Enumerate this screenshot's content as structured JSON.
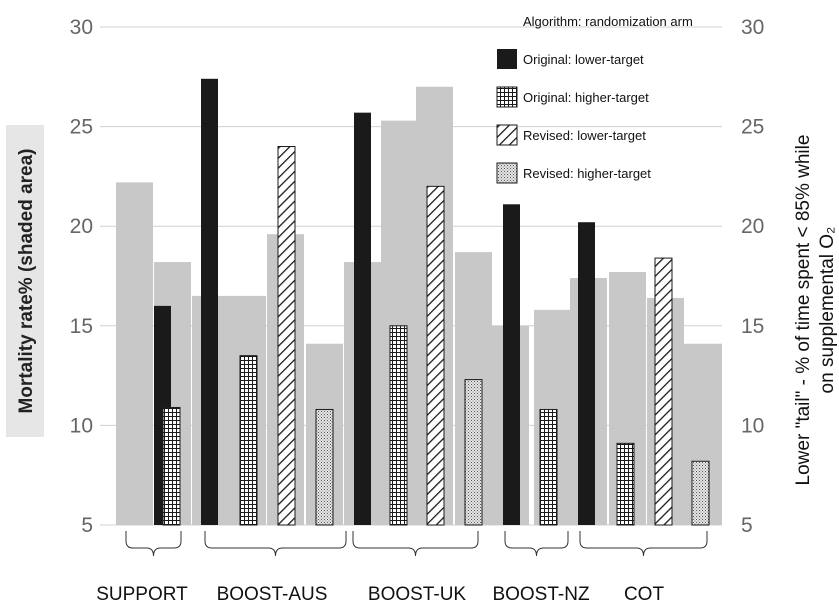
{
  "chart_data": {
    "type": "bar",
    "yleft": {
      "label": "Mortality rate% (shaded area)",
      "ylim": [
        5,
        30
      ],
      "ticks": [
        5,
        10,
        15,
        20,
        25,
        30
      ]
    },
    "yright": {
      "label_line1": "Lower \"tail\" - % of time spent < 85% while",
      "label_line2": "on supplemental O₂",
      "ylim": [
        5,
        30
      ],
      "ticks": [
        5,
        10,
        15,
        20,
        25,
        30
      ]
    },
    "legend_title": "Algorithm: randomization arm",
    "legend": [
      {
        "key": "orig_lower",
        "label": "Original: lower-target"
      },
      {
        "key": "orig_higher",
        "label": "Original: higher-target"
      },
      {
        "key": "rev_lower",
        "label": "Revised: lower-target"
      },
      {
        "key": "rev_higher",
        "label": "Revised: higher-target"
      }
    ],
    "studies": [
      "SUPPORT",
      "BOOST-AUS",
      "BOOST-UK",
      "BOOST-NZ",
      "COT"
    ],
    "mortality": [
      {
        "study": "SUPPORT",
        "arm": "lower",
        "value": 22.2
      },
      {
        "study": "SUPPORT",
        "arm": "higher",
        "value": 18.2
      },
      {
        "study": "BOOST-AUS",
        "arm": "lower",
        "value": 16.5
      },
      {
        "study": "BOOST-AUS",
        "arm": "higher",
        "value": 16.5
      },
      {
        "study": "BOOST-AUS",
        "arm": "lower",
        "value": 19.6
      },
      {
        "study": "BOOST-AUS",
        "arm": "higher",
        "value": 14.1
      },
      {
        "study": "BOOST-UK",
        "arm": "lower",
        "value": 18.2
      },
      {
        "study": "BOOST-UK",
        "arm": "higher",
        "value": 25.3
      },
      {
        "study": "BOOST-UK",
        "arm": "lower",
        "value": 27.0
      },
      {
        "study": "BOOST-UK",
        "arm": "higher",
        "value": 18.7
      },
      {
        "study": "BOOST-NZ",
        "arm": "lower",
        "value": 15.0
      },
      {
        "study": "BOOST-NZ",
        "arm": "higher",
        "value": 15.8
      },
      {
        "study": "COT",
        "arm": "lower",
        "value": 17.4
      },
      {
        "study": "COT",
        "arm": "higher",
        "value": 17.7
      },
      {
        "study": "COT",
        "arm": "lower",
        "value": 16.4
      },
      {
        "study": "COT",
        "arm": "higher",
        "value": 14.1
      }
    ],
    "tail": [
      {
        "study": "SUPPORT",
        "series": "orig_lower",
        "value": 16.0
      },
      {
        "study": "SUPPORT",
        "series": "orig_higher",
        "value": 10.9
      },
      {
        "study": "BOOST-AUS",
        "series": "orig_lower",
        "value": 27.4
      },
      {
        "study": "BOOST-AUS",
        "series": "orig_higher",
        "value": 13.5
      },
      {
        "study": "BOOST-AUS",
        "series": "rev_lower",
        "value": 24.0
      },
      {
        "study": "BOOST-AUS",
        "series": "rev_higher",
        "value": 10.8
      },
      {
        "study": "BOOST-UK",
        "series": "orig_lower",
        "value": 25.7
      },
      {
        "study": "BOOST-UK",
        "series": "orig_higher",
        "value": 15.0
      },
      {
        "study": "BOOST-UK",
        "series": "rev_lower",
        "value": 22.0
      },
      {
        "study": "BOOST-UK",
        "series": "rev_higher",
        "value": 12.3
      },
      {
        "study": "BOOST-NZ",
        "series": "orig_lower",
        "value": 21.1
      },
      {
        "study": "BOOST-NZ",
        "series": "orig_higher",
        "value": 10.8
      },
      {
        "study": "COT",
        "series": "orig_lower",
        "value": 20.2
      },
      {
        "study": "COT",
        "series": "orig_higher",
        "value": 9.1
      },
      {
        "study": "COT",
        "series": "rev_lower",
        "value": 18.4
      },
      {
        "study": "COT",
        "series": "rev_higher",
        "value": 8.2
      }
    ],
    "colors": {
      "mortality": "#c8c8c8",
      "orig_lower": "#1a1a1a",
      "axis_text": "#666666",
      "left_label_bg": "#e6e6e6"
    }
  }
}
